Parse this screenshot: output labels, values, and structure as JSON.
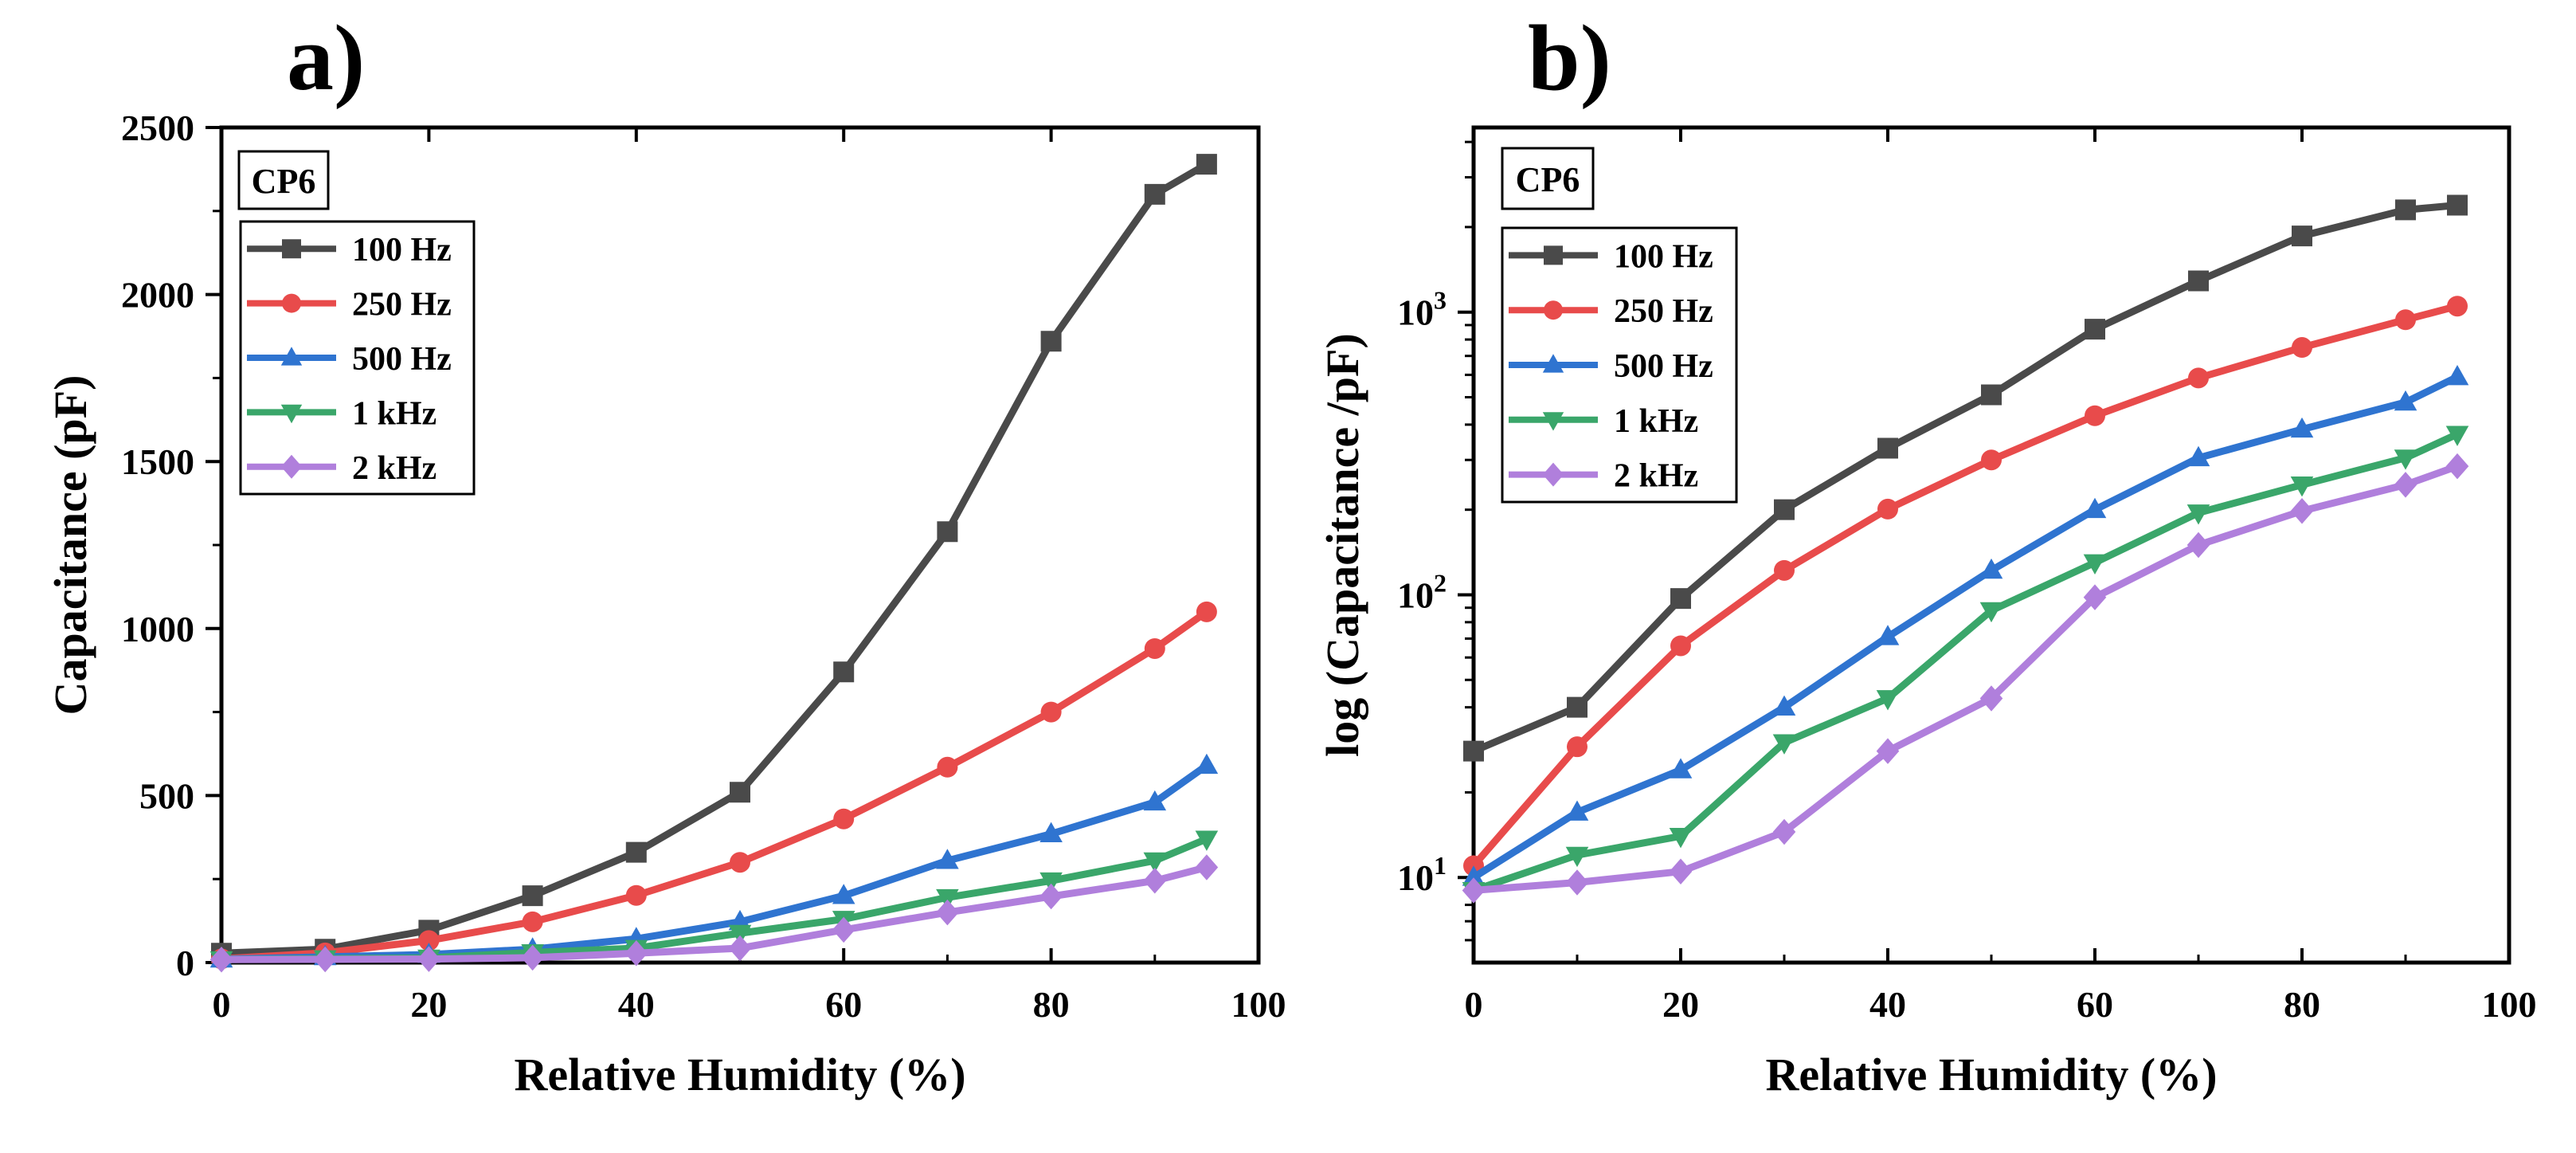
{
  "chart_data": [
    {
      "type": "line",
      "panel_label": "a)",
      "title": "",
      "xlabel": "Relative Humidity (%)",
      "ylabel": "Capacitance (pF)",
      "xscale": "linear",
      "yscale": "linear",
      "xlim": [
        0,
        100
      ],
      "ylim": [
        0,
        2500
      ],
      "xticks": [
        0,
        20,
        40,
        60,
        80,
        100
      ],
      "yticks": [
        0,
        500,
        1000,
        1500,
        2000,
        2500
      ],
      "x": [
        0,
        10,
        20,
        30,
        40,
        50,
        60,
        70,
        80,
        90,
        95
      ],
      "legend_title": "CP6",
      "legend_position": "top-left",
      "grid": false,
      "series": [
        {
          "name": "100 Hz",
          "color": "#4a4a4a",
          "marker": "square",
          "values": [
            28,
            40,
            97,
            200,
            330,
            510,
            870,
            1290,
            1860,
            2300,
            2390
          ]
        },
        {
          "name": "250 Hz",
          "color": "#e84b4b",
          "marker": "circle",
          "values": [
            11,
            29,
            66,
            122,
            201,
            300,
            430,
            585,
            750,
            940,
            1050
          ]
        },
        {
          "name": "500 Hz",
          "color": "#2f74d0",
          "marker": "triangle",
          "values": [
            10,
            17,
            24,
            40,
            71,
            122,
            200,
            305,
            385,
            480,
            590
          ]
        },
        {
          "name": "1 kHz",
          "color": "#3aa66a",
          "marker": "tri-down",
          "values": [
            9,
            12,
            14,
            30,
            43,
            88,
            130,
            195,
            245,
            305,
            370
          ]
        },
        {
          "name": "2 kHz",
          "color": "#b07fdc",
          "marker": "diamond",
          "values": [
            9,
            9.6,
            10.5,
            14.5,
            28,
            43,
            98,
            150,
            198,
            245,
            285
          ]
        }
      ]
    },
    {
      "type": "line",
      "panel_label": "b)",
      "title": "",
      "xlabel": "Relative Humidity (%)",
      "ylabel": "log (Capacitance /pF)",
      "xscale": "linear",
      "yscale": "log",
      "xlim": [
        0,
        100
      ],
      "ylim": [
        5,
        4500
      ],
      "xticks": [
        0,
        20,
        40,
        60,
        80,
        100
      ],
      "yticks": [
        {
          "value": 10,
          "base": "10",
          "exp": "1"
        },
        {
          "value": 100,
          "base": "10",
          "exp": "2"
        },
        {
          "value": 1000,
          "base": "10",
          "exp": "3"
        }
      ],
      "x": [
        0,
        10,
        20,
        30,
        40,
        50,
        60,
        70,
        80,
        90,
        95
      ],
      "legend_title": "CP6",
      "legend_position": "top-left",
      "grid": false,
      "series": [
        {
          "name": "100 Hz",
          "color": "#4a4a4a",
          "marker": "square",
          "values": [
            28,
            40,
            97,
            200,
            330,
            510,
            870,
            1290,
            1860,
            2300,
            2390
          ]
        },
        {
          "name": "250 Hz",
          "color": "#e84b4b",
          "marker": "circle",
          "values": [
            11,
            29,
            66,
            122,
            201,
            300,
            430,
            585,
            750,
            940,
            1050
          ]
        },
        {
          "name": "500 Hz",
          "color": "#2f74d0",
          "marker": "triangle",
          "values": [
            10,
            17,
            24,
            40,
            71,
            122,
            200,
            305,
            385,
            480,
            590
          ]
        },
        {
          "name": "1 kHz",
          "color": "#3aa66a",
          "marker": "tri-down",
          "values": [
            9,
            12,
            14,
            30,
            43,
            88,
            130,
            195,
            245,
            305,
            370
          ]
        },
        {
          "name": "2 kHz",
          "color": "#b07fdc",
          "marker": "diamond",
          "values": [
            9,
            9.6,
            10.5,
            14.5,
            28,
            43,
            98,
            150,
            198,
            245,
            285
          ]
        }
      ]
    }
  ]
}
